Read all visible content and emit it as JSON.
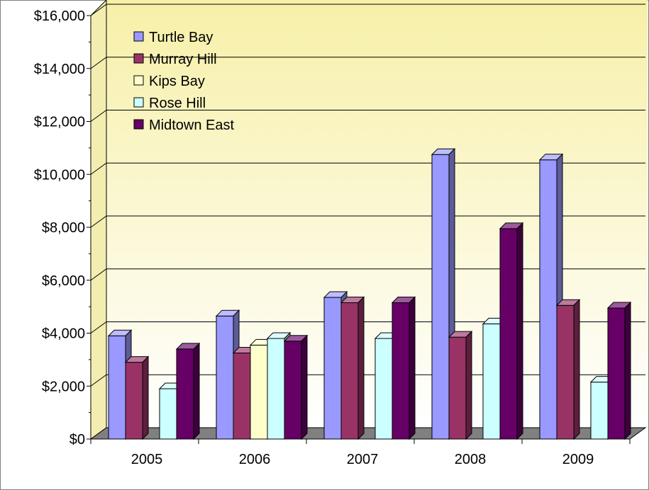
{
  "chart_data": {
    "type": "bar",
    "style": "3d-clustered-column",
    "categories": [
      "2005",
      "2006",
      "2007",
      "2008",
      "2009"
    ],
    "series": [
      {
        "name": "Turtle Bay",
        "color": "#9999ff",
        "values": [
          3900,
          4650,
          5350,
          10750,
          10550
        ]
      },
      {
        "name": "Murray Hill",
        "color": "#993366",
        "values": [
          2900,
          3250,
          5150,
          3850,
          5050
        ]
      },
      {
        "name": "Kips Bay",
        "color": "#ffffcc",
        "values": [
          null,
          3550,
          null,
          null,
          null
        ]
      },
      {
        "name": "Rose Hill",
        "color": "#ccffff",
        "values": [
          1900,
          3800,
          3800,
          4350,
          2150
        ]
      },
      {
        "name": "Midtown East",
        "color": "#660066",
        "values": [
          3400,
          3700,
          5150,
          7950,
          4950
        ]
      }
    ],
    "yticks": [
      "$0",
      "$2,000",
      "$4,000",
      "$6,000",
      "$8,000",
      "$10,000",
      "$12,000",
      "$14,000",
      "$16,000"
    ],
    "ylim": [
      0,
      16000
    ],
    "grid": true,
    "legend": "top-left inside plot",
    "title": "",
    "xlabel": "",
    "ylabel": ""
  }
}
